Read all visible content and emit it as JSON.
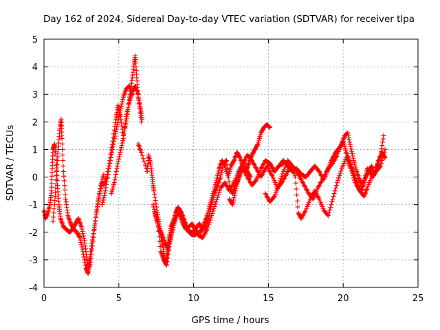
{
  "chart_data": {
    "type": "scatter",
    "title": "Day 162 of 2024, Sidereal Day-to-day VTEC variation (SDTVAR) for receiver tlpa",
    "xlabel": "GPS time / hours",
    "ylabel": "SDTVAR / TECUs",
    "xlim": [
      0,
      25
    ],
    "ylim": [
      -4,
      5
    ],
    "x_ticks": [
      0,
      5,
      10,
      15,
      20,
      25
    ],
    "y_ticks": [
      -4,
      -3,
      -2,
      -1,
      0,
      1,
      2,
      3,
      4,
      5
    ],
    "grid": true,
    "marker": "+",
    "series_color": "#ff0000",
    "series": [
      {
        "name": "trace-a",
        "points": [
          [
            0.0,
            -1.2
          ],
          [
            0.1,
            -1.5
          ],
          [
            0.25,
            -1.3
          ],
          [
            0.4,
            -1.0
          ],
          [
            0.5,
            -0.5
          ],
          [
            0.55,
            0.3
          ],
          [
            0.6,
            1.0
          ],
          [
            0.7,
            1.2
          ],
          [
            0.8,
            0.8
          ],
          [
            0.9,
            -0.3
          ],
          [
            1.0,
            -1.0
          ],
          [
            1.1,
            -1.5
          ],
          [
            1.3,
            -1.8
          ],
          [
            1.5,
            -1.9
          ],
          [
            1.7,
            -2.0
          ],
          [
            1.9,
            -1.9
          ],
          [
            2.1,
            -1.7
          ],
          [
            2.3,
            -1.5
          ],
          [
            2.5,
            -1.8
          ],
          [
            2.7,
            -2.3
          ],
          [
            2.85,
            -2.9
          ],
          [
            2.95,
            -3.3
          ],
          [
            3.05,
            -3.0
          ],
          [
            3.2,
            -2.4
          ],
          [
            3.4,
            -1.7
          ],
          [
            3.6,
            -1.0
          ],
          [
            3.8,
            -0.3
          ],
          [
            4.0,
            0.1
          ]
        ]
      },
      {
        "name": "trace-b",
        "points": [
          [
            0.6,
            -1.6
          ],
          [
            0.75,
            -0.7
          ],
          [
            0.85,
            0.2
          ],
          [
            0.95,
            1.0
          ],
          [
            1.05,
            1.7
          ],
          [
            1.15,
            2.1
          ],
          [
            1.2,
            1.4
          ],
          [
            1.3,
            0.2
          ],
          [
            1.45,
            -0.8
          ],
          [
            1.6,
            -1.4
          ],
          [
            1.8,
            -1.7
          ],
          [
            2.0,
            -1.9
          ],
          [
            2.2,
            -2.0
          ],
          [
            2.4,
            -2.2
          ],
          [
            2.6,
            -2.7
          ],
          [
            2.8,
            -3.3
          ],
          [
            2.95,
            -3.5
          ],
          [
            3.1,
            -3.1
          ],
          [
            3.3,
            -2.2
          ],
          [
            3.5,
            -1.3
          ],
          [
            3.7,
            -0.6
          ],
          [
            3.9,
            -0.2
          ]
        ]
      },
      {
        "name": "trace-c",
        "points": [
          [
            4.0,
            -0.3
          ],
          [
            4.2,
            0.0
          ],
          [
            4.4,
            0.6
          ],
          [
            4.6,
            1.3
          ],
          [
            4.8,
            2.1
          ],
          [
            4.95,
            2.6
          ],
          [
            5.1,
            2.2
          ],
          [
            5.3,
            1.5
          ],
          [
            5.5,
            2.0
          ],
          [
            5.7,
            2.8
          ],
          [
            5.85,
            3.4
          ],
          [
            6.0,
            4.0
          ],
          [
            6.1,
            4.4
          ],
          [
            6.2,
            3.6
          ],
          [
            6.3,
            2.9
          ],
          [
            6.45,
            2.5
          ],
          [
            6.55,
            2.1
          ]
        ]
      },
      {
        "name": "trace-d",
        "points": [
          [
            4.5,
            -0.6
          ],
          [
            4.7,
            -0.2
          ],
          [
            4.9,
            0.4
          ],
          [
            5.1,
            0.9
          ],
          [
            5.3,
            1.4
          ],
          [
            5.5,
            2.2
          ],
          [
            5.7,
            2.7
          ],
          [
            5.9,
            3.1
          ],
          [
            6.1,
            3.3
          ],
          [
            6.3,
            3.0
          ],
          [
            6.5,
            2.0
          ]
        ]
      },
      {
        "name": "trace-e",
        "points": [
          [
            3.9,
            -1.0
          ],
          [
            4.1,
            -0.5
          ],
          [
            4.3,
            0.2
          ],
          [
            4.5,
            0.8
          ],
          [
            4.7,
            1.4
          ],
          [
            4.9,
            1.9
          ],
          [
            5.1,
            2.4
          ],
          [
            5.3,
            2.9
          ],
          [
            5.5,
            3.2
          ],
          [
            5.7,
            3.3
          ],
          [
            5.9,
            3.0
          ]
        ]
      },
      {
        "name": "trace-f",
        "points": [
          [
            6.3,
            1.2
          ],
          [
            6.5,
            0.9
          ],
          [
            6.9,
            0.2
          ],
          [
            7.0,
            0.8
          ],
          [
            7.15,
            0.4
          ],
          [
            7.25,
            -0.1
          ],
          [
            7.35,
            -0.5
          ],
          [
            7.55,
            -1.2
          ],
          [
            7.7,
            -1.7
          ],
          [
            7.85,
            -2.2
          ],
          [
            7.95,
            -2.5
          ],
          [
            8.05,
            -2.9
          ],
          [
            8.15,
            -3.1
          ],
          [
            8.25,
            -2.7
          ],
          [
            8.35,
            -2.2
          ],
          [
            8.5,
            -1.8
          ],
          [
            8.65,
            -1.6
          ],
          [
            8.8,
            -1.3
          ],
          [
            8.95,
            -1.1
          ],
          [
            9.1,
            -1.2
          ],
          [
            9.3,
            -1.5
          ],
          [
            9.5,
            -1.8
          ],
          [
            9.7,
            -2.0
          ],
          [
            9.9,
            -2.1
          ],
          [
            10.1,
            -2.1
          ],
          [
            10.3,
            -2.0
          ],
          [
            10.5,
            -2.0
          ],
          [
            10.7,
            -1.7
          ],
          [
            10.9,
            -1.4
          ],
          [
            11.1,
            -1.0
          ],
          [
            11.3,
            -0.6
          ],
          [
            11.5,
            -0.2
          ],
          [
            11.7,
            0.3
          ],
          [
            11.9,
            0.6
          ],
          [
            12.1,
            0.4
          ],
          [
            12.3,
            0.0
          ],
          [
            12.5,
            0.4
          ],
          [
            12.7,
            0.6
          ],
          [
            12.9,
            0.9
          ],
          [
            13.1,
            0.7
          ],
          [
            13.3,
            0.4
          ],
          [
            13.5,
            0.2
          ],
          [
            13.7,
            0.5
          ],
          [
            13.9,
            0.8
          ],
          [
            14.1,
            1.0
          ],
          [
            14.3,
            1.2
          ],
          [
            14.5,
            1.6
          ],
          [
            14.7,
            1.8
          ],
          [
            14.9,
            1.9
          ],
          [
            15.1,
            1.8
          ]
        ]
      },
      {
        "name": "trace-g",
        "points": [
          [
            7.3,
            -1.0
          ],
          [
            7.5,
            -1.5
          ],
          [
            7.7,
            -1.9
          ],
          [
            7.9,
            -2.1
          ],
          [
            8.1,
            -2.4
          ],
          [
            8.3,
            -2.6
          ],
          [
            8.5,
            -2.1
          ],
          [
            8.7,
            -1.6
          ],
          [
            8.9,
            -1.3
          ],
          [
            9.1,
            -1.4
          ],
          [
            9.3,
            -1.7
          ],
          [
            9.5,
            -1.9
          ],
          [
            9.7,
            -1.8
          ],
          [
            9.9,
            -1.7
          ],
          [
            10.1,
            -1.9
          ],
          [
            10.3,
            -2.1
          ],
          [
            10.6,
            -2.2
          ],
          [
            10.9,
            -1.9
          ],
          [
            11.2,
            -1.4
          ],
          [
            11.5,
            -0.9
          ],
          [
            11.8,
            -0.4
          ],
          [
            12.1,
            -0.2
          ],
          [
            12.4,
            -0.5
          ],
          [
            12.7,
            -0.2
          ],
          [
            13.0,
            0.2
          ],
          [
            13.3,
            0.5
          ],
          [
            13.6,
            0.8
          ],
          [
            13.9,
            0.6
          ],
          [
            14.2,
            0.3
          ],
          [
            14.5,
            0.0
          ],
          [
            14.8,
            0.3
          ],
          [
            15.1,
            0.5
          ],
          [
            15.4,
            0.2
          ],
          [
            15.7,
            0.4
          ],
          [
            16.0,
            0.5
          ]
        ]
      },
      {
        "name": "trace-h",
        "points": [
          [
            7.4,
            -1.3
          ],
          [
            7.6,
            -1.6
          ],
          [
            7.8,
            -2.7
          ],
          [
            8.0,
            -3.0
          ],
          [
            8.2,
            -3.2
          ],
          [
            8.4,
            -2.4
          ],
          [
            8.6,
            -1.9
          ],
          [
            8.8,
            -1.5
          ],
          [
            9.0,
            -1.2
          ],
          [
            9.2,
            -1.3
          ],
          [
            9.4,
            -1.6
          ],
          [
            9.6,
            -1.9
          ],
          [
            9.8,
            -2.0
          ],
          [
            10.0,
            -2.0
          ],
          [
            10.2,
            -1.8
          ],
          [
            10.4,
            -1.7
          ],
          [
            10.6,
            -1.9
          ],
          [
            10.8,
            -1.8
          ],
          [
            11.0,
            -1.5
          ],
          [
            11.2,
            -1.0
          ],
          [
            11.4,
            -0.6
          ],
          [
            11.6,
            -0.3
          ],
          [
            11.8,
            0.0
          ],
          [
            12.0,
            0.5
          ],
          [
            12.2,
            0.6
          ],
          [
            12.4,
            -0.3
          ],
          [
            12.6,
            -0.6
          ],
          [
            12.8,
            -0.3
          ],
          [
            13.0,
            -0.1
          ],
          [
            13.2,
            0.3
          ],
          [
            13.4,
            0.6
          ],
          [
            13.6,
            0.2
          ],
          [
            13.8,
            0.0
          ]
        ]
      },
      {
        "name": "trace-i",
        "points": [
          [
            12.4,
            -0.8
          ],
          [
            12.6,
            -1.0
          ],
          [
            12.8,
            -0.5
          ],
          [
            13.0,
            0.0
          ],
          [
            13.3,
            0.3
          ],
          [
            13.6,
            0.0
          ],
          [
            13.9,
            -0.3
          ],
          [
            14.2,
            -0.1
          ],
          [
            14.5,
            0.3
          ],
          [
            14.8,
            0.6
          ],
          [
            15.1,
            0.5
          ],
          [
            15.4,
            0.2
          ],
          [
            15.7,
            0.4
          ],
          [
            16.0,
            0.6
          ],
          [
            16.3,
            0.4
          ],
          [
            16.6,
            0.2
          ],
          [
            16.9,
            0.3
          ],
          [
            17.2,
            0.1
          ],
          [
            17.5,
            0.0
          ],
          [
            17.8,
            0.2
          ],
          [
            18.1,
            0.4
          ],
          [
            18.4,
            0.2
          ],
          [
            18.7,
            -0.1
          ],
          [
            19.0,
            0.3
          ],
          [
            19.3,
            0.5
          ],
          [
            19.6,
            0.8
          ],
          [
            19.9,
            1.2
          ],
          [
            20.1,
            1.5
          ],
          [
            20.3,
            1.6
          ],
          [
            20.5,
            1.1
          ],
          [
            20.7,
            0.6
          ],
          [
            20.9,
            0.2
          ],
          [
            21.1,
            -0.1
          ],
          [
            21.3,
            -0.3
          ],
          [
            21.5,
            0.0
          ],
          [
            21.7,
            0.2
          ],
          [
            21.9,
            0.4
          ],
          [
            22.1,
            0.1
          ],
          [
            22.3,
            0.5
          ],
          [
            22.5,
            0.8
          ],
          [
            22.7,
            1.5
          ]
        ]
      },
      {
        "name": "trace-j",
        "points": [
          [
            15.0,
            0.3
          ],
          [
            15.3,
            0.0
          ],
          [
            15.6,
            -0.4
          ],
          [
            15.9,
            -0.2
          ],
          [
            16.2,
            0.1
          ],
          [
            16.5,
            0.4
          ],
          [
            16.8,
            0.3
          ],
          [
            17.1,
            0.0
          ],
          [
            17.4,
            -0.3
          ],
          [
            17.7,
            -0.6
          ],
          [
            18.0,
            -0.8
          ],
          [
            18.3,
            -0.4
          ],
          [
            18.6,
            -0.1
          ],
          [
            18.9,
            0.2
          ],
          [
            19.2,
            0.6
          ],
          [
            19.5,
            0.9
          ],
          [
            19.8,
            1.1
          ],
          [
            20.0,
            1.3
          ],
          [
            20.2,
            0.9
          ],
          [
            20.4,
            0.6
          ],
          [
            20.6,
            0.3
          ],
          [
            20.8,
            0.0
          ],
          [
            21.0,
            -0.3
          ],
          [
            21.2,
            -0.5
          ],
          [
            21.4,
            -0.2
          ],
          [
            21.6,
            0.3
          ],
          [
            21.8,
            0.2
          ],
          [
            22.0,
            0.0
          ],
          [
            22.2,
            0.3
          ],
          [
            22.4,
            0.6
          ],
          [
            22.6,
            0.9
          ],
          [
            22.8,
            0.7
          ]
        ]
      },
      {
        "name": "trace-k",
        "points": [
          [
            14.8,
            -0.6
          ],
          [
            15.1,
            -0.9
          ],
          [
            15.4,
            -0.7
          ],
          [
            15.7,
            -0.3
          ],
          [
            16.0,
            0.2
          ],
          [
            16.3,
            0.6
          ],
          [
            16.6,
            0.4
          ],
          [
            16.8,
            0.0
          ],
          [
            17.0,
            -1.3
          ],
          [
            17.2,
            -1.5
          ],
          [
            17.5,
            -1.2
          ],
          [
            17.8,
            -0.8
          ],
          [
            18.1,
            -0.5
          ],
          [
            18.4,
            -0.8
          ],
          [
            18.7,
            -1.2
          ],
          [
            19.0,
            -1.4
          ],
          [
            19.3,
            -0.8
          ],
          [
            19.6,
            -0.2
          ],
          [
            19.9,
            0.3
          ],
          [
            20.2,
            0.7
          ],
          [
            20.5,
            0.3
          ],
          [
            20.8,
            -0.2
          ],
          [
            21.1,
            -0.5
          ],
          [
            21.4,
            -0.7
          ],
          [
            21.6,
            -0.4
          ],
          [
            21.9,
            0.0
          ],
          [
            22.2,
            0.2
          ],
          [
            22.5,
            0.4
          ],
          [
            22.8,
            1.0
          ]
        ]
      }
    ]
  }
}
